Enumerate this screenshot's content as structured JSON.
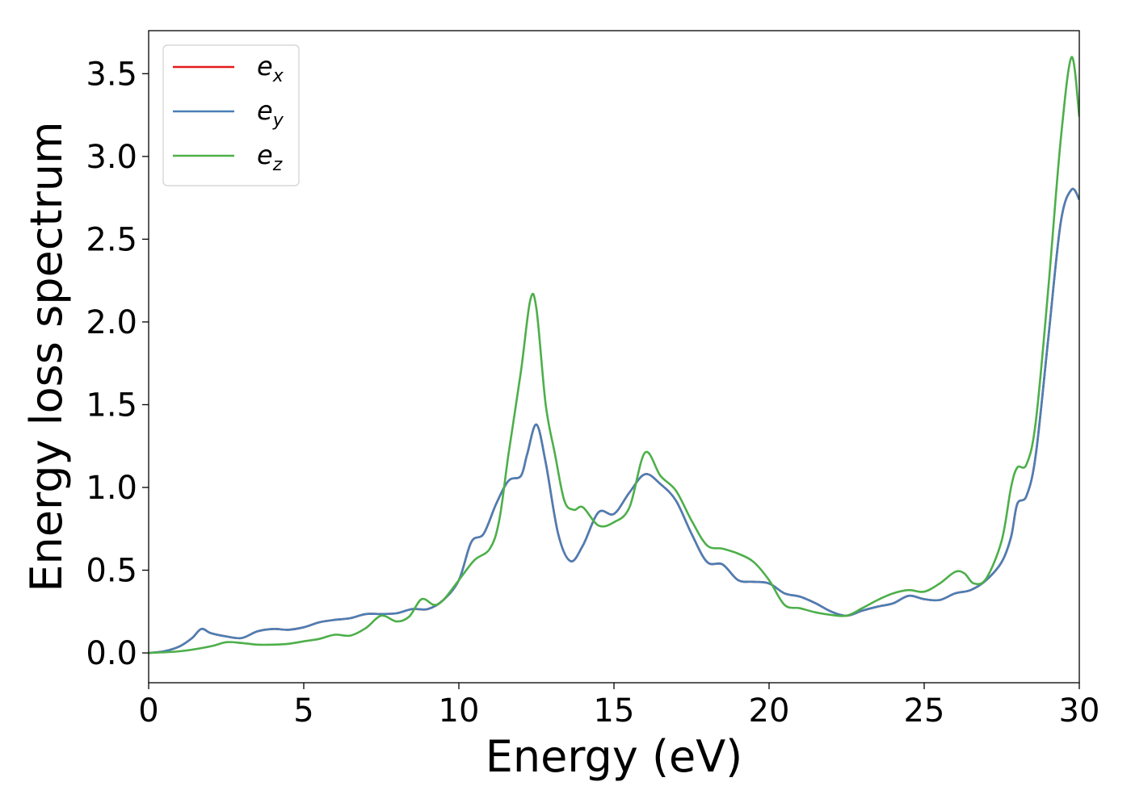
{
  "chart_data": {
    "type": "line",
    "xlabel": "Energy (eV)",
    "ylabel": "Energy loss spectrum",
    "xlim": [
      0,
      30
    ],
    "ylim": [
      -0.18,
      3.76
    ],
    "xticks": [
      0,
      5,
      10,
      15,
      20,
      25,
      30
    ],
    "yticks": [
      0.0,
      0.5,
      1.0,
      1.5,
      2.0,
      2.5,
      3.0,
      3.5
    ],
    "xtick_labels": [
      "0",
      "5",
      "10",
      "15",
      "20",
      "25",
      "30"
    ],
    "ytick_labels": [
      "0.0",
      "0.5",
      "1.0",
      "1.5",
      "2.0",
      "2.5",
      "3.0",
      "3.5"
    ],
    "grid": false,
    "legend_position": "top-left",
    "series": [
      {
        "name": "e_x",
        "label_base": "e",
        "label_sub": "x",
        "color": "#e41a1c",
        "points": [
          [
            0,
            0
          ],
          [
            0.5,
            0.01
          ],
          [
            1.0,
            0.04
          ],
          [
            1.4,
            0.09
          ],
          [
            1.7,
            0.145
          ],
          [
            2.0,
            0.12
          ],
          [
            2.5,
            0.1
          ],
          [
            3.0,
            0.09
          ],
          [
            3.5,
            0.13
          ],
          [
            4.0,
            0.145
          ],
          [
            4.5,
            0.14
          ],
          [
            5.0,
            0.155
          ],
          [
            5.5,
            0.185
          ],
          [
            6.0,
            0.2
          ],
          [
            6.5,
            0.21
          ],
          [
            7.0,
            0.235
          ],
          [
            7.5,
            0.235
          ],
          [
            8.0,
            0.24
          ],
          [
            8.5,
            0.265
          ],
          [
            9.0,
            0.265
          ],
          [
            9.5,
            0.32
          ],
          [
            10.0,
            0.44
          ],
          [
            10.4,
            0.67
          ],
          [
            10.8,
            0.72
          ],
          [
            11.2,
            0.9
          ],
          [
            11.6,
            1.04
          ],
          [
            12.0,
            1.07
          ],
          [
            12.2,
            1.2
          ],
          [
            12.5,
            1.38
          ],
          [
            12.8,
            1.15
          ],
          [
            13.2,
            0.72
          ],
          [
            13.6,
            0.555
          ],
          [
            14.0,
            0.65
          ],
          [
            14.5,
            0.85
          ],
          [
            15.0,
            0.84
          ],
          [
            15.5,
            0.97
          ],
          [
            16.0,
            1.08
          ],
          [
            16.5,
            1.02
          ],
          [
            17.0,
            0.92
          ],
          [
            17.5,
            0.72
          ],
          [
            18.0,
            0.55
          ],
          [
            18.5,
            0.535
          ],
          [
            19.0,
            0.44
          ],
          [
            19.5,
            0.43
          ],
          [
            20.0,
            0.42
          ],
          [
            20.5,
            0.36
          ],
          [
            21.0,
            0.34
          ],
          [
            21.5,
            0.3
          ],
          [
            22.0,
            0.25
          ],
          [
            22.5,
            0.225
          ],
          [
            23.0,
            0.255
          ],
          [
            23.5,
            0.28
          ],
          [
            24.0,
            0.3
          ],
          [
            24.5,
            0.345
          ],
          [
            25.0,
            0.325
          ],
          [
            25.5,
            0.32
          ],
          [
            26.0,
            0.36
          ],
          [
            26.5,
            0.38
          ],
          [
            27.0,
            0.44
          ],
          [
            27.5,
            0.55
          ],
          [
            27.8,
            0.7
          ],
          [
            28.0,
            0.9
          ],
          [
            28.3,
            0.95
          ],
          [
            28.6,
            1.2
          ],
          [
            29.0,
            1.9
          ],
          [
            29.4,
            2.6
          ],
          [
            29.75,
            2.8
          ],
          [
            30.0,
            2.74
          ]
        ]
      },
      {
        "name": "e_y",
        "label_base": "e",
        "label_sub": "y",
        "color": "#4a7fb5",
        "points": [
          [
            0,
            0
          ],
          [
            0.5,
            0.01
          ],
          [
            1.0,
            0.04
          ],
          [
            1.4,
            0.09
          ],
          [
            1.7,
            0.145
          ],
          [
            2.0,
            0.12
          ],
          [
            2.5,
            0.1
          ],
          [
            3.0,
            0.09
          ],
          [
            3.5,
            0.13
          ],
          [
            4.0,
            0.145
          ],
          [
            4.5,
            0.14
          ],
          [
            5.0,
            0.155
          ],
          [
            5.5,
            0.185
          ],
          [
            6.0,
            0.2
          ],
          [
            6.5,
            0.21
          ],
          [
            7.0,
            0.235
          ],
          [
            7.5,
            0.235
          ],
          [
            8.0,
            0.24
          ],
          [
            8.5,
            0.265
          ],
          [
            9.0,
            0.265
          ],
          [
            9.5,
            0.32
          ],
          [
            10.0,
            0.44
          ],
          [
            10.4,
            0.67
          ],
          [
            10.8,
            0.72
          ],
          [
            11.2,
            0.9
          ],
          [
            11.6,
            1.04
          ],
          [
            12.0,
            1.07
          ],
          [
            12.2,
            1.2
          ],
          [
            12.5,
            1.38
          ],
          [
            12.8,
            1.15
          ],
          [
            13.2,
            0.72
          ],
          [
            13.6,
            0.555
          ],
          [
            14.0,
            0.65
          ],
          [
            14.5,
            0.85
          ],
          [
            15.0,
            0.84
          ],
          [
            15.5,
            0.97
          ],
          [
            16.0,
            1.08
          ],
          [
            16.5,
            1.02
          ],
          [
            17.0,
            0.92
          ],
          [
            17.5,
            0.72
          ],
          [
            18.0,
            0.55
          ],
          [
            18.5,
            0.535
          ],
          [
            19.0,
            0.44
          ],
          [
            19.5,
            0.43
          ],
          [
            20.0,
            0.42
          ],
          [
            20.5,
            0.36
          ],
          [
            21.0,
            0.34
          ],
          [
            21.5,
            0.3
          ],
          [
            22.0,
            0.25
          ],
          [
            22.5,
            0.225
          ],
          [
            23.0,
            0.255
          ],
          [
            23.5,
            0.28
          ],
          [
            24.0,
            0.3
          ],
          [
            24.5,
            0.345
          ],
          [
            25.0,
            0.325
          ],
          [
            25.5,
            0.32
          ],
          [
            26.0,
            0.36
          ],
          [
            26.5,
            0.38
          ],
          [
            27.0,
            0.44
          ],
          [
            27.5,
            0.55
          ],
          [
            27.8,
            0.7
          ],
          [
            28.0,
            0.9
          ],
          [
            28.3,
            0.95
          ],
          [
            28.6,
            1.2
          ],
          [
            29.0,
            1.9
          ],
          [
            29.4,
            2.6
          ],
          [
            29.75,
            2.8
          ],
          [
            30.0,
            2.74
          ]
        ]
      },
      {
        "name": "e_z",
        "label_base": "e",
        "label_sub": "z",
        "color": "#4daf4a",
        "points": [
          [
            0,
            0
          ],
          [
            1.0,
            0.01
          ],
          [
            2.0,
            0.04
          ],
          [
            2.5,
            0.065
          ],
          [
            3.0,
            0.06
          ],
          [
            3.5,
            0.05
          ],
          [
            4.0,
            0.05
          ],
          [
            4.5,
            0.055
          ],
          [
            5.0,
            0.07
          ],
          [
            5.5,
            0.085
          ],
          [
            6.0,
            0.11
          ],
          [
            6.5,
            0.105
          ],
          [
            7.0,
            0.15
          ],
          [
            7.5,
            0.225
          ],
          [
            8.0,
            0.19
          ],
          [
            8.4,
            0.22
          ],
          [
            8.8,
            0.325
          ],
          [
            9.2,
            0.29
          ],
          [
            9.5,
            0.32
          ],
          [
            10.0,
            0.44
          ],
          [
            10.5,
            0.56
          ],
          [
            11.0,
            0.63
          ],
          [
            11.3,
            0.8
          ],
          [
            11.6,
            1.2
          ],
          [
            12.0,
            1.7
          ],
          [
            12.3,
            2.13
          ],
          [
            12.5,
            2.08
          ],
          [
            12.8,
            1.5
          ],
          [
            13.1,
            1.2
          ],
          [
            13.4,
            0.92
          ],
          [
            13.7,
            0.865
          ],
          [
            14.0,
            0.88
          ],
          [
            14.5,
            0.77
          ],
          [
            15.0,
            0.79
          ],
          [
            15.5,
            0.88
          ],
          [
            16.0,
            1.21
          ],
          [
            16.5,
            1.07
          ],
          [
            17.0,
            0.98
          ],
          [
            17.5,
            0.8
          ],
          [
            18.0,
            0.65
          ],
          [
            18.5,
            0.63
          ],
          [
            19.0,
            0.6
          ],
          [
            19.5,
            0.55
          ],
          [
            20.0,
            0.44
          ],
          [
            20.5,
            0.29
          ],
          [
            21.0,
            0.27
          ],
          [
            21.5,
            0.245
          ],
          [
            22.0,
            0.23
          ],
          [
            22.5,
            0.225
          ],
          [
            23.0,
            0.27
          ],
          [
            23.5,
            0.32
          ],
          [
            24.0,
            0.36
          ],
          [
            24.5,
            0.38
          ],
          [
            25.0,
            0.37
          ],
          [
            25.5,
            0.42
          ],
          [
            26.0,
            0.49
          ],
          [
            26.3,
            0.48
          ],
          [
            26.6,
            0.42
          ],
          [
            27.0,
            0.45
          ],
          [
            27.5,
            0.68
          ],
          [
            27.8,
            1.0
          ],
          [
            28.0,
            1.12
          ],
          [
            28.3,
            1.14
          ],
          [
            28.6,
            1.4
          ],
          [
            29.0,
            2.2
          ],
          [
            29.4,
            3.1
          ],
          [
            29.75,
            3.6
          ],
          [
            30.0,
            3.24
          ]
        ]
      }
    ]
  }
}
